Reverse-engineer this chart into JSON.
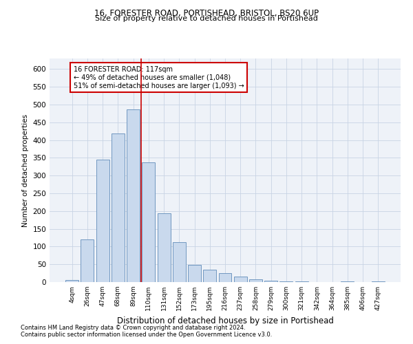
{
  "title1": "16, FORESTER ROAD, PORTISHEAD, BRISTOL, BS20 6UP",
  "title2": "Size of property relative to detached houses in Portishead",
  "xlabel": "Distribution of detached houses by size in Portishead",
  "ylabel": "Number of detached properties",
  "categories": [
    "4sqm",
    "26sqm",
    "47sqm",
    "68sqm",
    "89sqm",
    "110sqm",
    "131sqm",
    "152sqm",
    "173sqm",
    "195sqm",
    "216sqm",
    "237sqm",
    "258sqm",
    "279sqm",
    "300sqm",
    "321sqm",
    "342sqm",
    "364sqm",
    "385sqm",
    "406sqm",
    "427sqm"
  ],
  "values": [
    5,
    120,
    345,
    418,
    487,
    338,
    193,
    113,
    48,
    35,
    25,
    16,
    8,
    3,
    1,
    1,
    0,
    0,
    1,
    0,
    1
  ],
  "bar_color": "#c9d9ed",
  "bar_edge_color": "#7097c0",
  "vline_x_index": 4.5,
  "vline_color": "#cc0000",
  "annotation_text": "16 FORESTER ROAD: 117sqm\n← 49% of detached houses are smaller (1,048)\n51% of semi-detached houses are larger (1,093) →",
  "annotation_box_color": "#ffffff",
  "annotation_box_edge": "#cc0000",
  "footer1": "Contains HM Land Registry data © Crown copyright and database right 2024.",
  "footer2": "Contains public sector information licensed under the Open Government Licence v3.0.",
  "bg_color": "#eef2f8",
  "ylim": [
    0,
    630
  ],
  "yticks": [
    0,
    50,
    100,
    150,
    200,
    250,
    300,
    350,
    400,
    450,
    500,
    550,
    600
  ]
}
